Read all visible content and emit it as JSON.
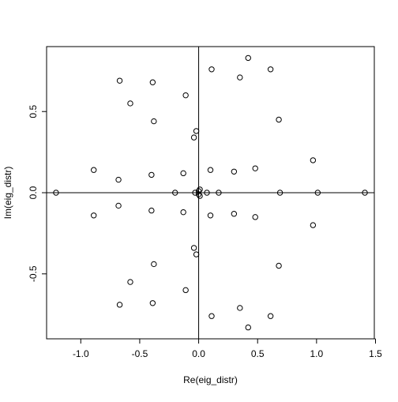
{
  "chart_data": {
    "type": "scatter",
    "title": "",
    "xlabel": "Re(eig_distr)",
    "ylabel": "Im(eig_distr)",
    "xlim": [
      -1.29,
      1.49
    ],
    "ylim": [
      -0.9,
      0.9
    ],
    "xticks": [
      -1.0,
      -0.5,
      0.0,
      0.5,
      1.0,
      1.5
    ],
    "xtick_labels": [
      "-1.0",
      "-0.5",
      "0.0",
      "0.5",
      "1.0",
      "1.5"
    ],
    "yticks": [
      -0.5,
      0.0,
      0.5
    ],
    "ytick_labels": [
      "-0.5",
      "0.0",
      "0.5"
    ],
    "grid": false,
    "reference_lines": {
      "x": 0,
      "y": 0
    },
    "marker": "open-circle",
    "marker_color": "#000000",
    "series": [
      {
        "x": [
          -1.21,
          -0.89,
          -0.89,
          -0.68,
          -0.68,
          -0.67,
          -0.67,
          -0.58,
          -0.58,
          -0.39,
          -0.39,
          -0.38,
          -0.38,
          -0.4,
          -0.4,
          -0.2,
          -0.13,
          -0.13,
          -0.11,
          -0.11,
          -0.04,
          -0.04,
          -0.02,
          -0.02,
          -0.03,
          0.0,
          0.0,
          0.01,
          0.01,
          0.07,
          0.1,
          0.1,
          0.11,
          0.11,
          0.17,
          0.3,
          0.3,
          0.35,
          0.35,
          0.42,
          0.42,
          0.48,
          0.48,
          0.61,
          0.61,
          0.68,
          0.68,
          0.69,
          0.97,
          0.97,
          1.01,
          1.41
        ],
        "y": [
          0.0,
          0.14,
          -0.14,
          0.08,
          -0.08,
          0.69,
          -0.69,
          0.55,
          -0.55,
          0.68,
          -0.68,
          0.44,
          -0.44,
          0.11,
          -0.11,
          0.0,
          0.12,
          -0.12,
          0.6,
          -0.6,
          0.34,
          -0.34,
          0.38,
          -0.38,
          0.0,
          0.01,
          -0.01,
          0.02,
          -0.02,
          0.0,
          0.14,
          -0.14,
          0.76,
          -0.76,
          0.0,
          0.13,
          -0.13,
          0.71,
          -0.71,
          0.83,
          -0.83,
          0.15,
          -0.15,
          0.76,
          -0.76,
          0.45,
          -0.45,
          0.0,
          0.2,
          -0.2,
          0.0,
          0.0
        ]
      }
    ]
  }
}
